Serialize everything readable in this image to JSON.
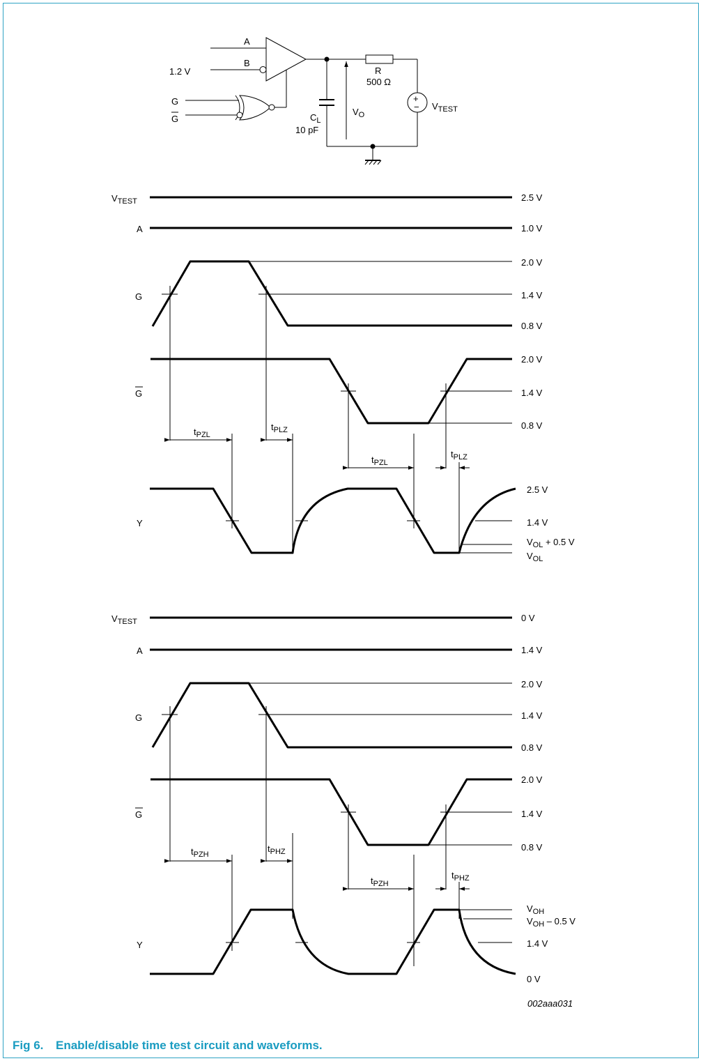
{
  "caption": {
    "number": "Fig 6.",
    "text": "Enable/disable time test circuit and waveforms."
  },
  "figure_id": "002aaa031",
  "colors": {
    "accent": "#1a9cc1",
    "border": "#2ea3c4",
    "ink": "#000000"
  },
  "circuit": {
    "input_a": "A",
    "input_b": "B",
    "b_voltage": "1.2 V",
    "input_g": "G",
    "input_gbar": "G",
    "resistor_name": "R",
    "resistor_value": "500 Ω",
    "cap_name": "C",
    "cap_sub": "L",
    "cap_value": "10 pF",
    "vo": "V",
    "vo_sub": "O",
    "vtest": "V",
    "vtest_sub": "TEST",
    "src_plus": "+",
    "src_minus": "−"
  },
  "low_state": {
    "signal_labels": {
      "vtest": "V",
      "vtest_sub": "TEST",
      "a": "A",
      "g": "G",
      "gbar": "G",
      "y": "Y"
    },
    "levels": {
      "vtest": "2.5 V",
      "a": "1.0 V",
      "g_high": "2.0 V",
      "g_mid": "1.4 V",
      "g_low": "0.8 V",
      "gbar_high": "2.0 V",
      "gbar_mid": "1.4 V",
      "gbar_low": "0.8 V",
      "y_high": "2.5 V",
      "y_mid": "1.4 V",
      "y_vol05_main": "V",
      "y_vol05_sub": "OL",
      "y_vol05_suffix": " + 0.5 V",
      "y_vol_main": "V",
      "y_vol_sub": "OL"
    },
    "timing": {
      "tpzl_1": {
        "t": "t",
        "sub": "PZL"
      },
      "tplz_1": {
        "t": "t",
        "sub": "PLZ"
      },
      "tpzl_2": {
        "t": "t",
        "sub": "PZL"
      },
      "tplz_2": {
        "t": "t",
        "sub": "PLZ"
      }
    }
  },
  "high_state": {
    "signal_labels": {
      "vtest": "V",
      "vtest_sub": "TEST",
      "a": "A",
      "g": "G",
      "gbar": "G",
      "y": "Y"
    },
    "levels": {
      "vtest": "0 V",
      "a": "1.4 V",
      "g_high": "2.0 V",
      "g_mid": "1.4 V",
      "g_low": "0.8 V",
      "gbar_high": "2.0 V",
      "gbar_mid": "1.4 V",
      "gbar_low": "0.8 V",
      "y_voh_main": "V",
      "y_voh_sub": "OH",
      "y_voh05_main": "V",
      "y_voh05_sub": "OH",
      "y_voh05_suffix": " – 0.5 V",
      "y_mid": "1.4 V",
      "y_low": "0 V"
    },
    "timing": {
      "tpzh_1": {
        "t": "t",
        "sub": "PZH"
      },
      "tphz_1": {
        "t": "t",
        "sub": "PHZ"
      },
      "tpzh_2": {
        "t": "t",
        "sub": "PZH"
      },
      "tphz_2": {
        "t": "t",
        "sub": "PHZ"
      }
    }
  }
}
